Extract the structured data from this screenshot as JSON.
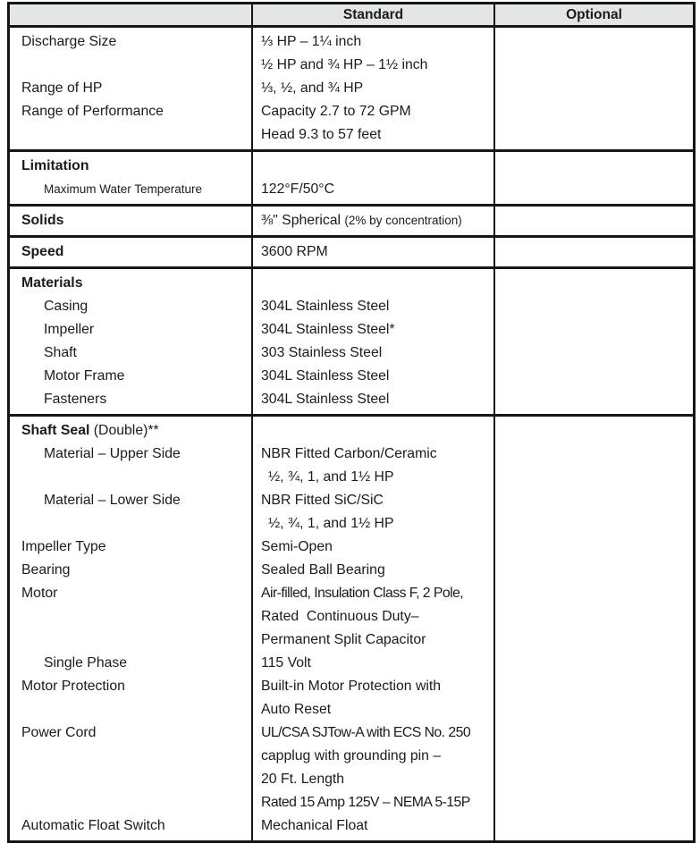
{
  "header": {
    "blank": "",
    "standard": "Standard",
    "optional": "Optional"
  },
  "colors": {
    "header_bg": "#e3e5e6",
    "border": "#161616",
    "text": "#1b1b1b"
  },
  "sections": {
    "general": {
      "rows": [
        {
          "label": "Discharge Size",
          "value": "⅓ HP – 1¼ inch"
        },
        {
          "label": "",
          "value": "½ HP and ¾ HP – 1½ inch"
        },
        {
          "label": "Range of HP",
          "value": "⅓, ½, and ¾ HP"
        },
        {
          "label": "Range of Performance",
          "value": "Capacity 2.7 to 72 GPM"
        },
        {
          "label": "",
          "value": "Head 9.3 to 57 feet"
        }
      ],
      "optional": ""
    },
    "limitation": {
      "rows": [
        {
          "label": "Limitation",
          "value": ""
        },
        {
          "label": "Maximum Water Temperature",
          "value": "122°F/50°C"
        }
      ],
      "optional": ""
    },
    "solids": {
      "rows": [
        {
          "label": "Solids",
          "value": "⅜\" Spherical ",
          "value_note": "(2% by concentration)"
        }
      ],
      "optional": ""
    },
    "speed": {
      "rows": [
        {
          "label": "Speed",
          "value": "3600 RPM"
        }
      ],
      "optional": ""
    },
    "materials": {
      "rows": [
        {
          "label": "Materials",
          "value": ""
        },
        {
          "label": "Casing",
          "value": "304L Stainless Steel"
        },
        {
          "label": "Impeller",
          "value": "304L Stainless Steel*"
        },
        {
          "label": "Shaft",
          "value": "303 Stainless Steel"
        },
        {
          "label": "Motor Frame",
          "value": "304L Stainless Steel"
        },
        {
          "label": "Fasteners",
          "value": "304L Stainless Steel"
        }
      ],
      "optional": ""
    },
    "construction": {
      "rows": [
        {
          "label": "Shaft Seal",
          "label_suffix": " (Double)**",
          "value": ""
        },
        {
          "label": "Material – Upper Side",
          "value": "NBR Fitted Carbon/Ceramic"
        },
        {
          "label": "",
          "value": "½, ¾, 1, and 1½ HP"
        },
        {
          "label": "Material – Lower Side",
          "value": "NBR Fitted SiC/SiC"
        },
        {
          "label": "",
          "value": "½, ¾, 1, and 1½ HP"
        },
        {
          "label": "Impeller Type",
          "value": "Semi-Open"
        },
        {
          "label": "Bearing",
          "value": "Sealed Ball Bearing"
        },
        {
          "label": "Motor",
          "value": "Air-filled, Insulation Class F, 2 Pole,"
        },
        {
          "label": "",
          "value": "Rated  Continuous Duty–"
        },
        {
          "label": "",
          "value": "Permanent Split Capacitor"
        },
        {
          "label": "Single Phase",
          "value": "115 Volt"
        },
        {
          "label": "Motor Protection",
          "value": "Built-in Motor Protection with"
        },
        {
          "label": "",
          "value": "Auto Reset"
        },
        {
          "label": "Power Cord",
          "value": "UL/CSA SJTow-A with ECS No. 250"
        },
        {
          "label": "",
          "value": "capplug with grounding pin –"
        },
        {
          "label": "",
          "value": "20 Ft. Length"
        },
        {
          "label": "",
          "value": "Rated 15 Amp 125V – NEMA 5-15P"
        },
        {
          "label": "Automatic Float Switch",
          "value": "Mechanical Float"
        }
      ],
      "optional": ""
    }
  }
}
